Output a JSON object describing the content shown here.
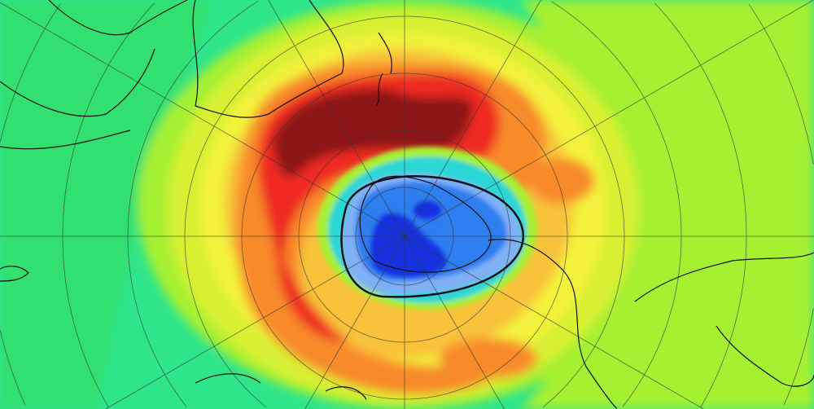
{
  "map": {
    "projection": "south-polar-stereographic",
    "colors": {
      "green": "#2fe58a",
      "lime": "#a6f032",
      "yellow": "#f2f23a",
      "light_orange": "#f8c23a",
      "orange": "#f88a2a",
      "red": "#ee2a20",
      "dark_red": "#7a1010",
      "cyan": "#29d6d6",
      "light_blue": "#7fb0f5",
      "blue": "#2f7ef0",
      "dark_blue": "#1230e0",
      "contour": "#10101a",
      "grid": "#333333"
    },
    "icons": [
      "coastline",
      "graticule",
      "ozone-hole-contour"
    ]
  }
}
